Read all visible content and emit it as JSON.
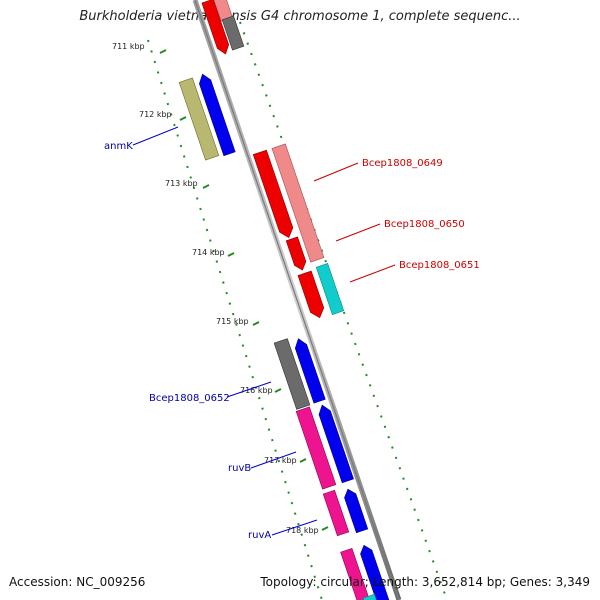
{
  "title": "Burkholderia vietnamiensis G4 chromosome 1, complete sequenc...",
  "footer": {
    "accession": "Accession: NC_009256",
    "stats": "Topology: circular; Length: 3,652,814 bp; Genes: 3,349"
  },
  "colors": {
    "backbone": "#808080",
    "tick_ring": "#228B22",
    "forward_label": "#cc0000",
    "reverse_label": "#0000aa"
  },
  "ticks": [
    "711 kbp",
    "712 kbp",
    "713 kbp",
    "714 kbp",
    "715 kbp",
    "716 kbp",
    "717 kbp",
    "718 kbp"
  ],
  "gene_labels": [
    "anmK",
    "Bcep1808_0649",
    "Bcep1808_0650",
    "Bcep1808_0651",
    "Bcep1808_0652",
    "ruvB",
    "ruvA"
  ]
}
